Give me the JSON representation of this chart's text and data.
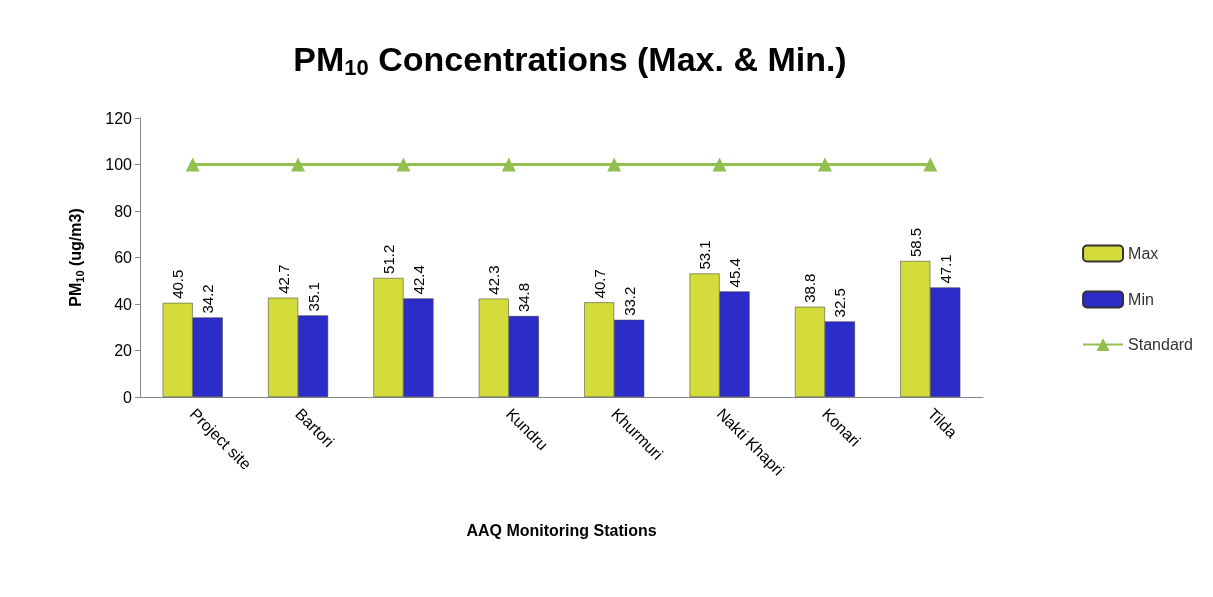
{
  "chart_data": {
    "type": "bar",
    "title": "PM$_{10}$ Concentrations (Max. & Min.)",
    "xlabel": "AAQ Monitoring Stations",
    "ylabel": "PM$_{10}$ (ug/m3)",
    "categories": [
      "Project site",
      "Bartori",
      null,
      "Kundru",
      "Khurmuri",
      "Nakti Khapri",
      "Konari",
      "Tilda"
    ],
    "series": [
      {
        "name": "Max",
        "color": "#d4dc3c",
        "values": [
          40.5,
          42.7,
          51.2,
          42.3,
          40.7,
          53.1,
          38.8,
          58.5
        ],
        "value_labels": [
          "40.5",
          "42.7",
          "51.2",
          "42.3",
          "40.7",
          "53.1",
          "38.8",
          "58.5"
        ]
      },
      {
        "name": "Min",
        "color": "#2c2cc8",
        "values": [
          34.2,
          35.1,
          42.4,
          34.8,
          33.2,
          45.4,
          32.5,
          47.1
        ],
        "value_labels": [
          "34.2",
          "35.1",
          "42.4",
          "34.8",
          "33.2",
          "45.4",
          "32.5",
          "47.1"
        ]
      },
      {
        "name": "Standard",
        "type": "line",
        "color": "#92c050",
        "marker": "triangle",
        "values": [
          100,
          100,
          100,
          100,
          100,
          100,
          100,
          100
        ]
      }
    ],
    "ylim": [
      0,
      120
    ],
    "yticks": [
      0,
      20,
      40,
      60,
      80,
      100,
      120
    ],
    "grid": false,
    "legend": "right"
  }
}
